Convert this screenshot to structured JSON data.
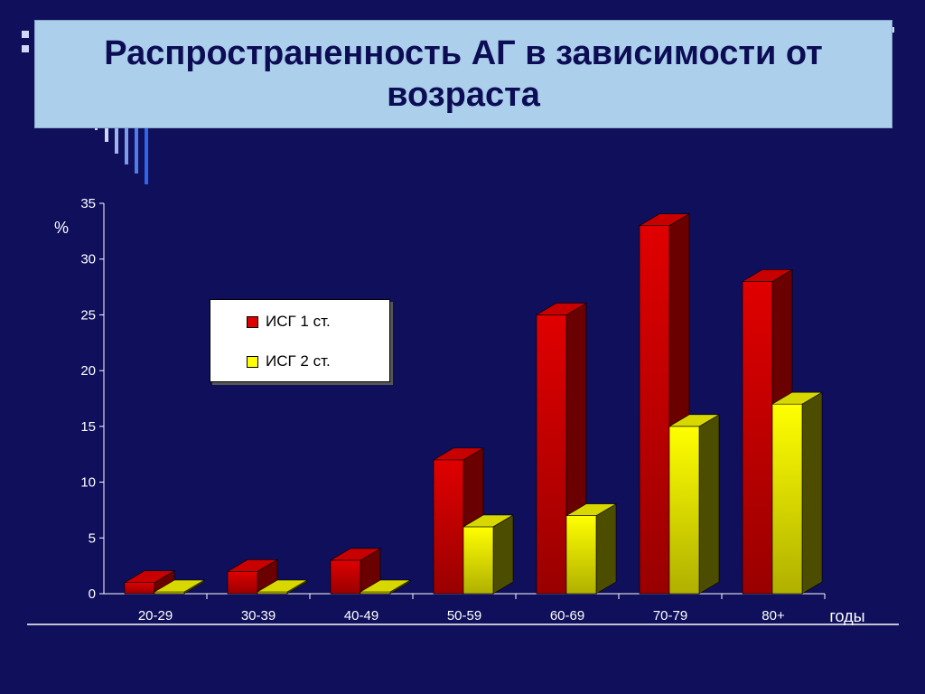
{
  "title": "Распространенность АГ в зависимости от возраста",
  "colors": {
    "background": "#0f0f5c",
    "title_bg": "#acd0ec",
    "series1": "#e00000",
    "series2": "#ffff00"
  },
  "legend": {
    "items": [
      "ИСГ 1 ст.",
      "ИСГ 2 ст."
    ]
  },
  "chart_data": {
    "type": "bar",
    "style": "3d-clustered",
    "categories": [
      "20-29",
      "30-39",
      "40-49",
      "50-59",
      "60-69",
      "70-79",
      "80+"
    ],
    "series": [
      {
        "name": "ИСГ 1 ст.",
        "values": [
          1,
          2,
          3,
          12,
          25,
          33,
          28
        ]
      },
      {
        "name": "ИСГ 2 ст.",
        "values": [
          0,
          0,
          0,
          6,
          7,
          15,
          17
        ]
      }
    ],
    "ylabel": "%",
    "xlabel": "годы",
    "ylim": [
      0,
      35
    ],
    "yticks": [
      0,
      5,
      10,
      15,
      20,
      25,
      30,
      35
    ],
    "grid": false,
    "legend_position": "upper-left"
  }
}
